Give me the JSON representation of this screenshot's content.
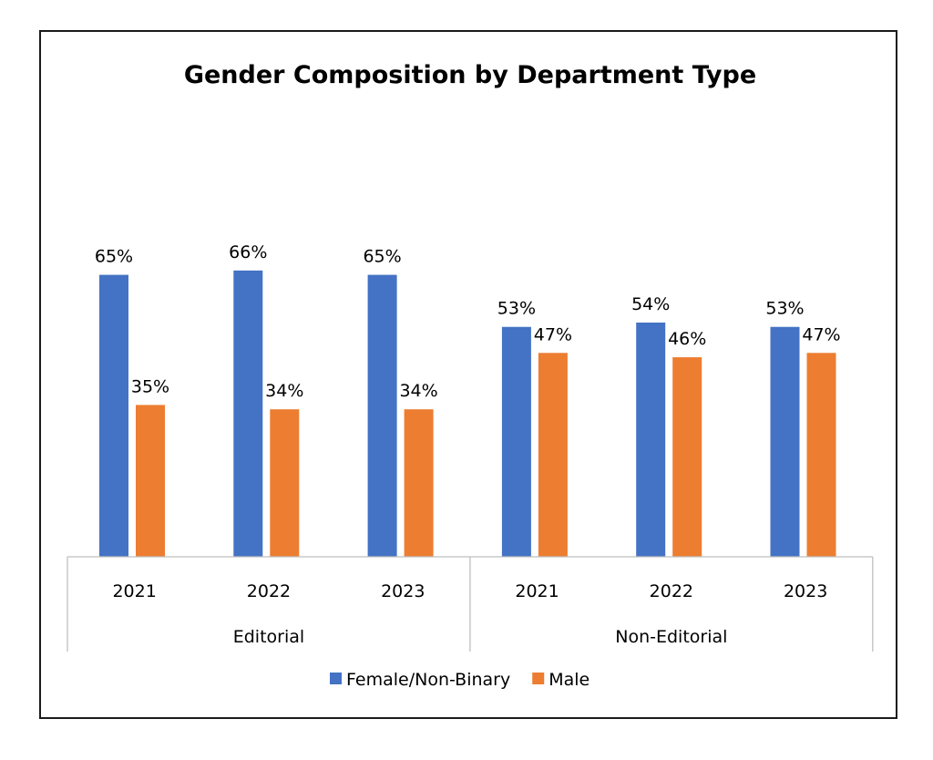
{
  "chart_data": {
    "type": "bar",
    "title": "Gender Composition by Department Type",
    "groups": [
      {
        "label": "Editorial",
        "categories": [
          "2021",
          "2022",
          "2023"
        ]
      },
      {
        "label": "Non-Editorial",
        "categories": [
          "2021",
          "2022",
          "2023"
        ]
      }
    ],
    "series": [
      {
        "name": "Female/Non-Binary",
        "color": "#4472C4",
        "values": [
          65,
          66,
          65,
          53,
          54,
          53
        ],
        "labels": [
          "65%",
          "66%",
          "65%",
          "53%",
          "54%",
          "53%"
        ]
      },
      {
        "name": "Male",
        "color": "#ED7D31",
        "values": [
          35,
          34,
          34,
          47,
          46,
          47
        ],
        "labels": [
          "35%",
          "34%",
          "34%",
          "47%",
          "46%",
          "47%"
        ]
      }
    ],
    "ylim": [
      0,
      100
    ],
    "grid": false,
    "legend_position": "bottom"
  }
}
